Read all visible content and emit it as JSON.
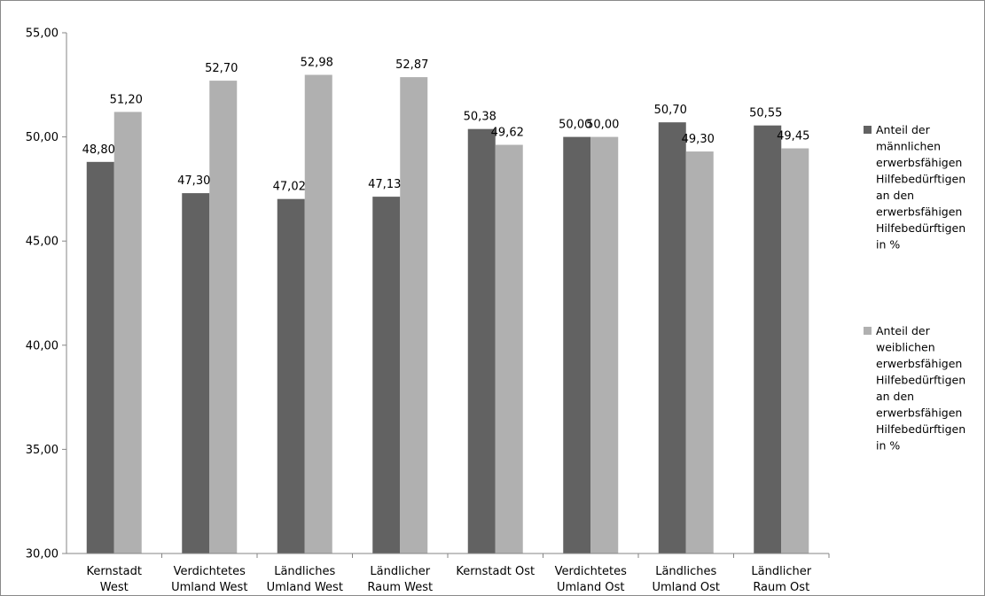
{
  "chart_data": {
    "type": "bar",
    "categories": [
      [
        "Kernstadt",
        "West"
      ],
      [
        "Verdichtetes",
        "Umland West"
      ],
      [
        "Ländliches",
        "Umland West"
      ],
      [
        "Ländlicher",
        "Raum West"
      ],
      [
        "Kernstadt Ost"
      ],
      [
        "Verdichtetes",
        "Umland Ost"
      ],
      [
        "Ländliches",
        "Umland Ost"
      ],
      [
        "Ländlicher",
        "Raum Ost"
      ]
    ],
    "series": [
      {
        "name": "Anteil der männlichen erwerbsfähigen Hilfebedürftigen an den erwerbsfähigen Hilfebedürftigen in %",
        "legend_lines": [
          "Anteil der",
          "männlichen",
          "erwerbsfähigen",
          "Hilfebedürftigen",
          "an den",
          "erwerbsfähigen",
          "Hilfebedürftigen",
          "in %"
        ],
        "color": "#626262",
        "values": [
          48.8,
          47.3,
          47.02,
          47.13,
          50.38,
          50.0,
          50.7,
          50.55
        ],
        "labels": [
          "48,80",
          "47,30",
          "47,02",
          "47,13",
          "50,38",
          "50,00",
          "50,70",
          "50,55"
        ]
      },
      {
        "name": "Anteil der weiblichen erwerbsfähigen Hilfebedürftigen an den erwerbsfähigen Hilfebedürftigen in %",
        "legend_lines": [
          "Anteil der",
          "weiblichen",
          "erwerbsfähigen",
          "Hilfebedürftigen",
          "an den",
          "erwerbsfähigen",
          "Hilfebedürftigen",
          "in %"
        ],
        "color": "#b0b0b0",
        "values": [
          51.2,
          52.7,
          52.98,
          52.87,
          49.62,
          50.0,
          49.3,
          49.45
        ],
        "labels": [
          "51,20",
          "52,70",
          "52,98",
          "52,87",
          "49,62",
          "50,00",
          "49,30",
          "49,45"
        ]
      }
    ],
    "ylim": [
      30,
      55
    ],
    "yticks": [
      30,
      35,
      40,
      45,
      50,
      55
    ],
    "ytick_labels": [
      "30,00",
      "35,00",
      "40,00",
      "45,00",
      "50,00",
      "55,00"
    ],
    "grid": false,
    "legend_position": "right",
    "title": "",
    "xlabel": "",
    "ylabel": ""
  }
}
